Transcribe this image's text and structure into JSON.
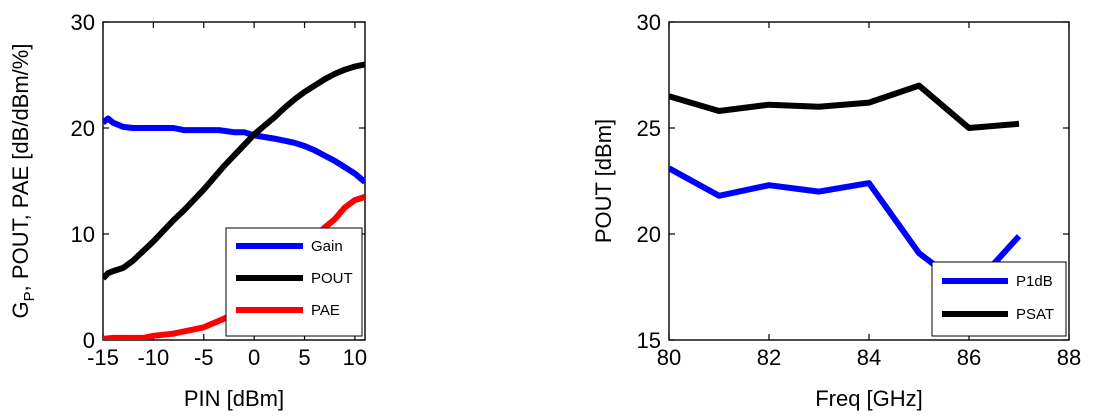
{
  "chart_data": [
    {
      "type": "line",
      "xlabel": "PIN [dBm]",
      "ylabel_parts": [
        "G",
        "P",
        ", POUT, PAE [dB/dBm/%]"
      ],
      "xlim": [
        -15,
        11
      ],
      "ylim": [
        0,
        30
      ],
      "xticks": [
        "-15",
        "-10",
        "-5",
        "0",
        "5",
        "10"
      ],
      "yticks": [
        "0",
        "10",
        "20",
        "30"
      ],
      "legend_position": "bottom-right",
      "grid": false,
      "series": [
        {
          "name": "Gain",
          "color": "#0000ff",
          "x": [
            -15,
            -14.5,
            -14,
            -13,
            -12,
            -10,
            -8,
            -7,
            -5,
            -3.5,
            -2,
            -1,
            0,
            2,
            4,
            5,
            6,
            7,
            8,
            9,
            10,
            11
          ],
          "y": [
            20.5,
            20.9,
            20.5,
            20.1,
            20.0,
            20.0,
            20.0,
            19.8,
            19.8,
            19.8,
            19.6,
            19.6,
            19.3,
            19.0,
            18.6,
            18.3,
            17.9,
            17.4,
            16.9,
            16.3,
            15.7,
            14.9
          ]
        },
        {
          "name": "POUT",
          "color": "#000000",
          "x": [
            -15,
            -14.5,
            -14,
            -13,
            -12,
            -10,
            -8,
            -7,
            -5,
            -3,
            -2,
            -1,
            0,
            1,
            2,
            3,
            4,
            5,
            6,
            7,
            8,
            9,
            10,
            11
          ],
          "y": [
            5.8,
            6.3,
            6.5,
            6.8,
            7.5,
            9.3,
            11.3,
            12.2,
            14.2,
            16.4,
            17.4,
            18.4,
            19.4,
            20.2,
            21.0,
            21.9,
            22.7,
            23.4,
            24.0,
            24.6,
            25.1,
            25.5,
            25.8,
            26.0
          ]
        },
        {
          "name": "PAE",
          "color": "#ff0000",
          "x": [
            -15,
            -14,
            -12,
            -11,
            -10,
            -9,
            -8,
            -7,
            -6,
            -5,
            -4,
            -3,
            -2,
            -1,
            0,
            1,
            2,
            3,
            4,
            5,
            6,
            7,
            8,
            9,
            10,
            11
          ],
          "y": [
            0.1,
            0.2,
            0.2,
            0.2,
            0.4,
            0.5,
            0.6,
            0.8,
            1.0,
            1.2,
            1.6,
            2.0,
            2.5,
            3.2,
            4.1,
            5.0,
            6.0,
            6.9,
            7.9,
            8.8,
            9.7,
            10.6,
            11.4,
            12.5,
            13.2,
            13.5
          ]
        }
      ]
    },
    {
      "type": "line",
      "xlabel": "Freq [GHz]",
      "ylabel": "POUT [dBm]",
      "xlim": [
        80,
        88
      ],
      "ylim": [
        15,
        30
      ],
      "xticks": [
        "80",
        "82",
        "84",
        "86",
        "88"
      ],
      "yticks": [
        "15",
        "20",
        "25",
        "30"
      ],
      "legend_position": "bottom-right",
      "grid": false,
      "series": [
        {
          "name": "P1dB",
          "color": "#0000ff",
          "x": [
            80,
            81,
            82,
            83,
            84,
            85,
            86,
            87
          ],
          "y": [
            23.1,
            21.8,
            22.3,
            22.0,
            22.4,
            19.1,
            17.3,
            19.9
          ]
        },
        {
          "name": "PSAT",
          "color": "#000000",
          "x": [
            80,
            81,
            82,
            83,
            84,
            85,
            86,
            87
          ],
          "y": [
            26.5,
            25.8,
            26.1,
            26.0,
            26.2,
            27.0,
            25.0,
            25.2
          ]
        }
      ]
    }
  ]
}
